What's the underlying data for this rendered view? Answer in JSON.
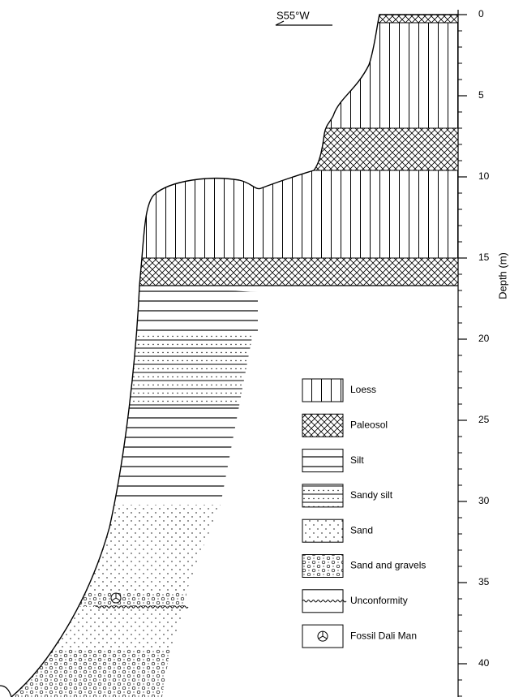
{
  "direction": "S55°W",
  "depth_axis": {
    "label": "Depth (m)",
    "ticks": [
      0,
      5,
      10,
      15,
      20,
      25,
      30,
      35,
      40
    ]
  },
  "legend": [
    {
      "label": "Loess"
    },
    {
      "label": "Paleosol"
    },
    {
      "label": "Silt"
    },
    {
      "label": "Sandy silt"
    },
    {
      "label": "Sand"
    },
    {
      "label": "Sand and gravels"
    },
    {
      "label": "Unconformity"
    },
    {
      "label": "Fossil Dali Man"
    }
  ]
}
